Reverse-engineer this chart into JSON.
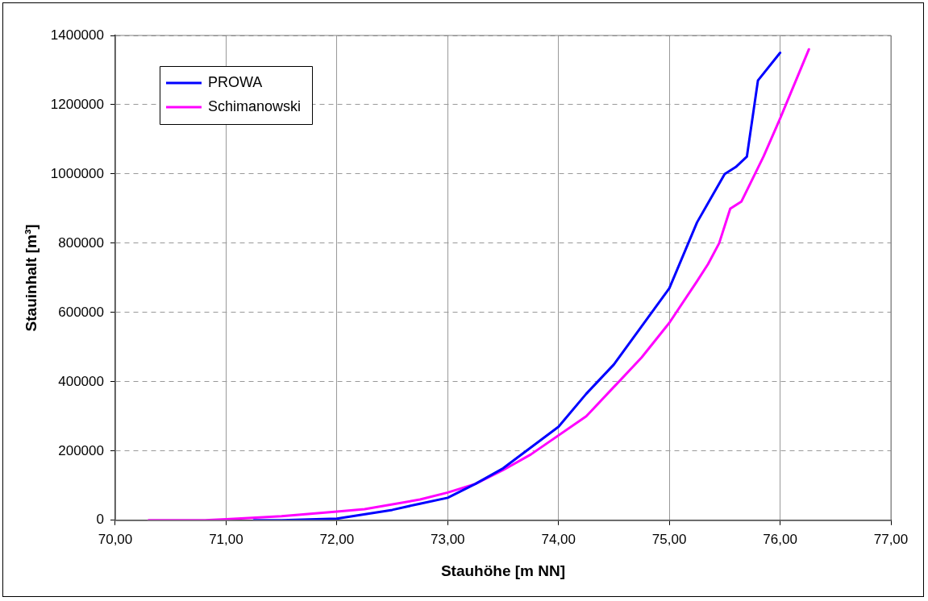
{
  "chart_data": {
    "type": "line",
    "xlabel": "Stauhöhe [m NN]",
    "ylabel": "Stauinhalt [m³]",
    "xlim": [
      70,
      77
    ],
    "xticks": [
      {
        "value": 70,
        "label": "70,00"
      },
      {
        "value": 71,
        "label": "71,00"
      },
      {
        "value": 72,
        "label": "72,00"
      },
      {
        "value": 73,
        "label": "73,00"
      },
      {
        "value": 74,
        "label": "74,00"
      },
      {
        "value": 75,
        "label": "75,00"
      },
      {
        "value": 76,
        "label": "76,00"
      },
      {
        "value": 77,
        "label": "77,00"
      }
    ],
    "ylim": [
      0,
      1400000
    ],
    "yticks": [
      0,
      200000,
      400000,
      600000,
      800000,
      1000000,
      1200000,
      1400000
    ],
    "grid": true,
    "legend": "top left",
    "marker": "none",
    "line_style": "solid",
    "series": [
      {
        "name": "PROWA",
        "color": "#0000ff",
        "x": [
          71.25,
          71.5,
          72,
          72.5,
          72.75,
          73,
          73.25,
          73.5,
          74,
          74.25,
          74.5,
          75,
          75.25,
          75.5,
          75.6,
          75.7,
          75.8,
          76
        ],
        "values": [
          0,
          0,
          5000,
          30000,
          48000,
          65000,
          105000,
          150000,
          270000,
          365000,
          450000,
          670000,
          860000,
          1000000,
          1020000,
          1050000,
          1270000,
          1350000
        ]
      },
      {
        "name": "Schimanowski",
        "color": "#ff00ff",
        "x": [
          70.3,
          70.8,
          71,
          71.5,
          72,
          72.25,
          72.75,
          73,
          73.25,
          73.5,
          73.75,
          74.25,
          74.75,
          75,
          75.25,
          75.35,
          75.45,
          75.55,
          75.65,
          75.75,
          75.85,
          76,
          76.26
        ],
        "values": [
          0,
          0,
          3000,
          12000,
          25000,
          32000,
          60000,
          80000,
          105000,
          145000,
          190000,
          300000,
          470000,
          570000,
          690000,
          740000,
          800000,
          900000,
          920000,
          985000,
          1050000,
          1160000,
          1360000
        ]
      }
    ]
  }
}
